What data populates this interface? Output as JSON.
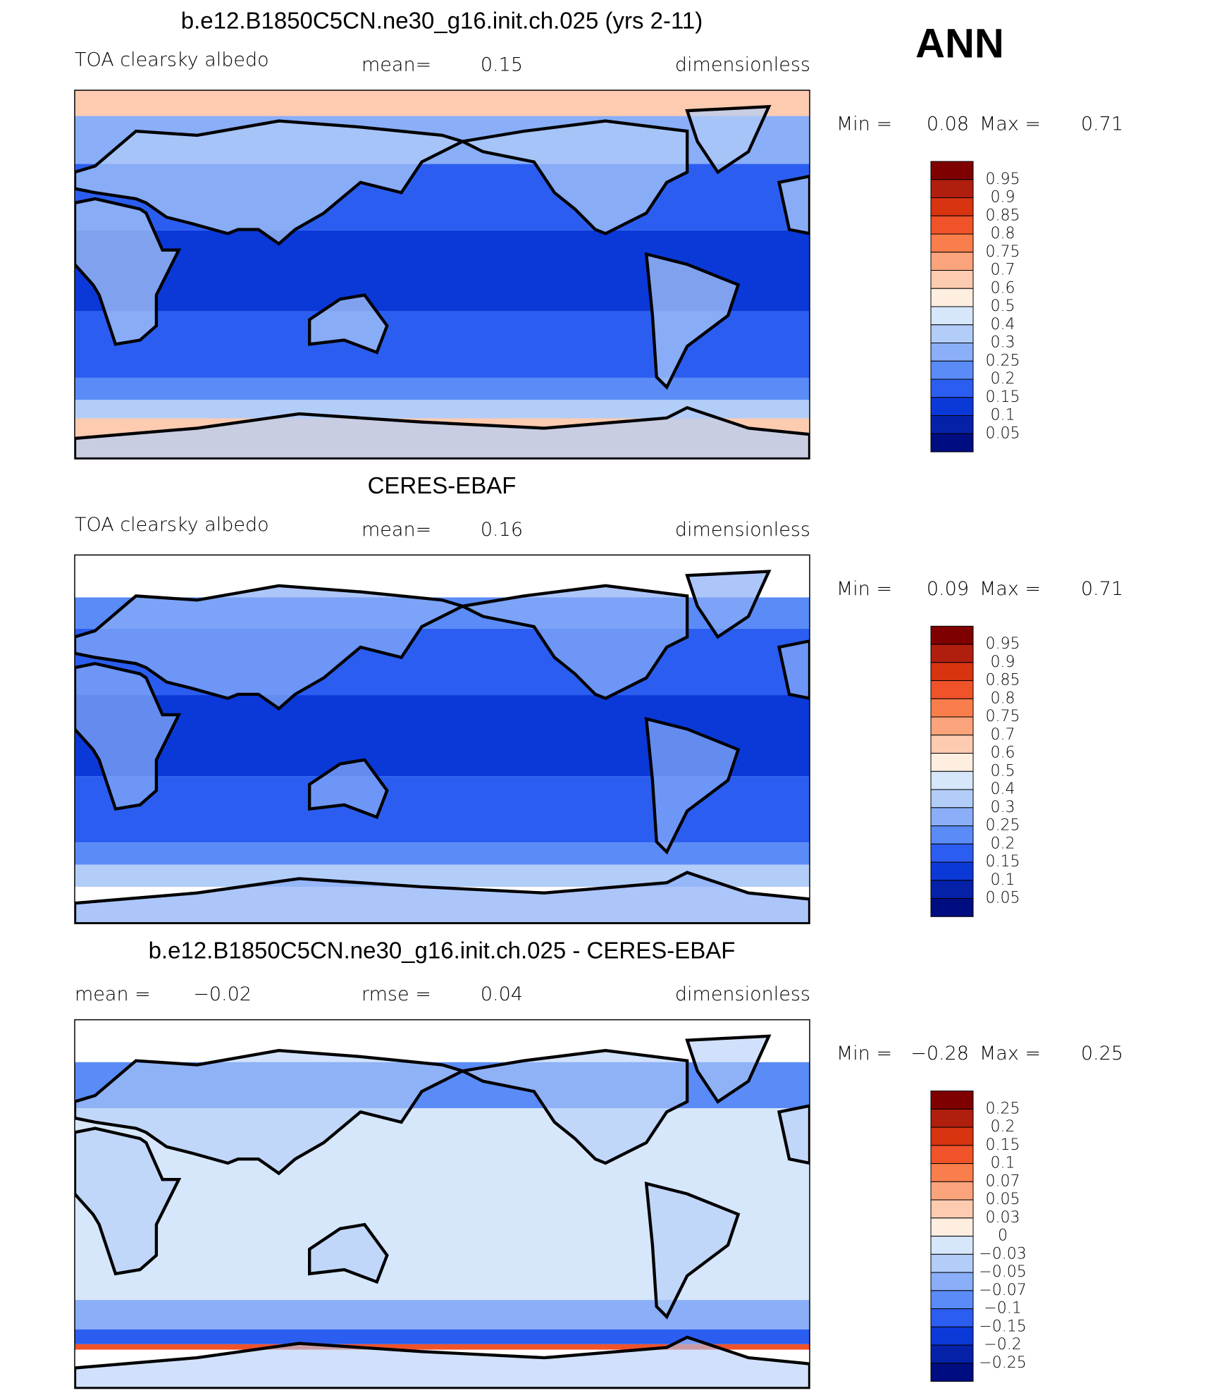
{
  "corner_label": "ANN",
  "colorbar_colors": [
    "#7f0000",
    "#b01e0e",
    "#d83410",
    "#f0522a",
    "#fa7e4c",
    "#fba47c",
    "#fdcbb0",
    "#fdeee0",
    "#d6e7fb",
    "#b2cdf8",
    "#8aaef8",
    "#5a8bf6",
    "#2b5ef0",
    "#0b39d8",
    "#0421a8",
    "#000d80"
  ],
  "panels": [
    {
      "title": "b.e12.B1850C5CN.ne30_g16.init.ch.025 (yrs 2-11)",
      "left": "TOA clearsky albedo",
      "stats": [
        {
          "label": "mean=",
          "value": "0.15"
        }
      ],
      "units": "dimensionless",
      "min_label": "Min =",
      "min": "0.08",
      "max_label": "Max =",
      "max": "0.71",
      "levels": [
        "0.95",
        "0.9",
        "0.85",
        "0.8",
        "0.75",
        "0.7",
        "0.6",
        "0.5",
        "0.4",
        "0.3",
        "0.25",
        "0.2",
        "0.15",
        "0.1",
        "0.05"
      ]
    },
    {
      "title": "CERES-EBAF",
      "left": "TOA clearsky albedo",
      "stats": [
        {
          "label": "mean=",
          "value": "0.16"
        }
      ],
      "units": "dimensionless",
      "min_label": "Min =",
      "min": "0.09",
      "max_label": "Max =",
      "max": "0.71",
      "levels": [
        "0.95",
        "0.9",
        "0.85",
        "0.8",
        "0.75",
        "0.7",
        "0.6",
        "0.5",
        "0.4",
        "0.3",
        "0.25",
        "0.2",
        "0.15",
        "0.1",
        "0.05"
      ]
    },
    {
      "title": "b.e12.B1850C5CN.ne30_g16.init.ch.025 - CERES-EBAF",
      "stats": [
        {
          "label": "mean =",
          "value": "−0.02"
        },
        {
          "label": "rmse =",
          "value": "0.04"
        }
      ],
      "units": "dimensionless",
      "min_label": "Min =",
      "min": "−0.28",
      "max_label": "Max =",
      "max": "0.25",
      "levels": [
        "0.25",
        "0.2",
        "0.15",
        "0.1",
        "0.07",
        "0.05",
        "0.03",
        "0",
        "−0.03",
        "−0.05",
        "−0.07",
        "−0.1",
        "−0.15",
        "−0.2",
        "−0.25"
      ]
    }
  ]
}
